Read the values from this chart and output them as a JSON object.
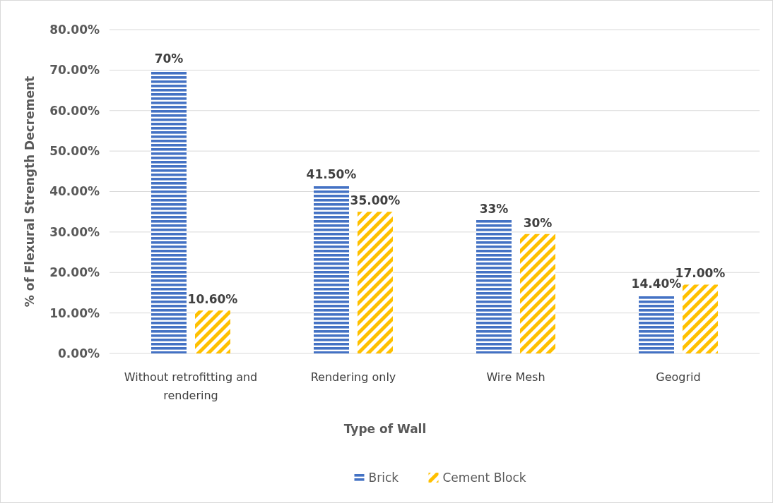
{
  "chart_data": {
    "type": "bar",
    "xlabel": "Type of Wall",
    "ylabel": "% of Flexural Strength Decrement",
    "categories": [
      "Without retrofitting and rendering",
      "Rendering only",
      "Wire Mesh",
      "Geogrid"
    ],
    "series": [
      {
        "name": "Brick",
        "color": "#4472c4",
        "values": [
          70,
          41.5,
          33,
          14.4
        ],
        "value_labels": [
          "70%",
          "41.50%",
          "33%",
          "14.40%"
        ]
      },
      {
        "name": "Cement Block",
        "color": "#ffc000",
        "values": [
          10.6,
          35,
          29.5,
          17
        ],
        "value_labels": [
          "10.60%",
          "35.00%",
          "30%",
          "17.00%"
        ]
      }
    ],
    "ylim": [
      0,
      80
    ],
    "yticks": [
      {
        "value": 0,
        "label": "0.00%"
      },
      {
        "value": 10,
        "label": "10.00%"
      },
      {
        "value": 20,
        "label": "20.00%"
      },
      {
        "value": 30,
        "label": "30.00%"
      },
      {
        "value": 40,
        "label": "40.00%"
      },
      {
        "value": 50,
        "label": "50.00%"
      },
      {
        "value": 60,
        "label": "60.00%"
      },
      {
        "value": 70,
        "label": "70.00%"
      },
      {
        "value": 80,
        "label": "80.00%"
      }
    ],
    "grid": "y",
    "legend": "bottom"
  }
}
